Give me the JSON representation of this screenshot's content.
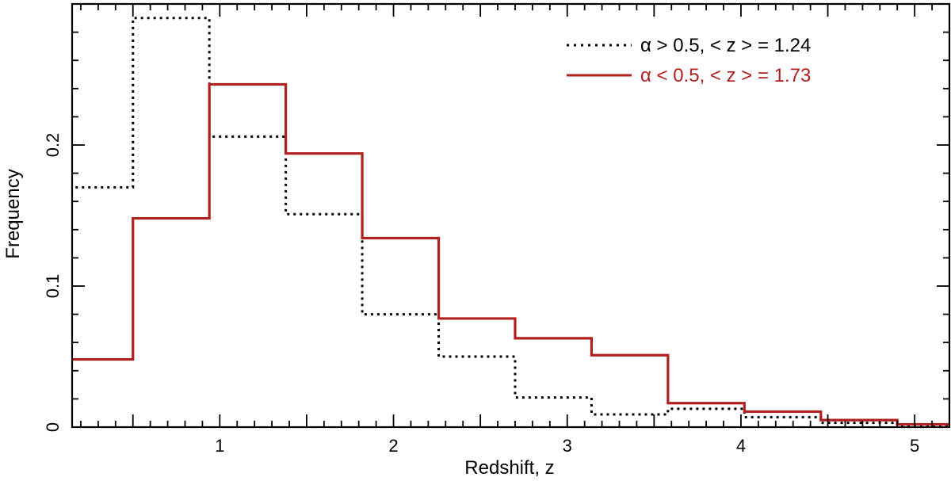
{
  "chart_data": {
    "type": "line",
    "step": true,
    "xlabel": "Redshift, z",
    "ylabel": "Frequency",
    "xlim": [
      0.15,
      5.2
    ],
    "ylim": [
      0,
      0.3
    ],
    "x_ticks": [
      1,
      2,
      3,
      4,
      5
    ],
    "x_tick_labels": [
      "1",
      "2",
      "3",
      "4",
      "5"
    ],
    "y_ticks": [
      0,
      0.1,
      0.2
    ],
    "y_tick_labels": [
      "0",
      "0.1",
      "0.2"
    ],
    "grid": false,
    "legend_position": "top-right",
    "bin_edges": [
      0.06,
      0.5,
      0.94,
      1.38,
      1.82,
      2.26,
      2.7,
      3.14,
      3.58,
      4.02,
      4.46,
      4.9,
      5.34
    ],
    "series": [
      {
        "name": "α > 0.5, < z > = 1.24",
        "color": "#000000",
        "style": "dotted",
        "values": [
          0.17,
          0.29,
          0.206,
          0.151,
          0.08,
          0.05,
          0.021,
          0.009,
          0.013,
          0.007,
          0.003,
          0.001
        ]
      },
      {
        "name": "α < 0.5, < z > = 1.73",
        "color": "#b0201e",
        "style": "solid",
        "values": [
          0.048,
          0.148,
          0.243,
          0.194,
          0.134,
          0.077,
          0.063,
          0.051,
          0.017,
          0.011,
          0.005,
          0.002
        ]
      }
    ]
  }
}
